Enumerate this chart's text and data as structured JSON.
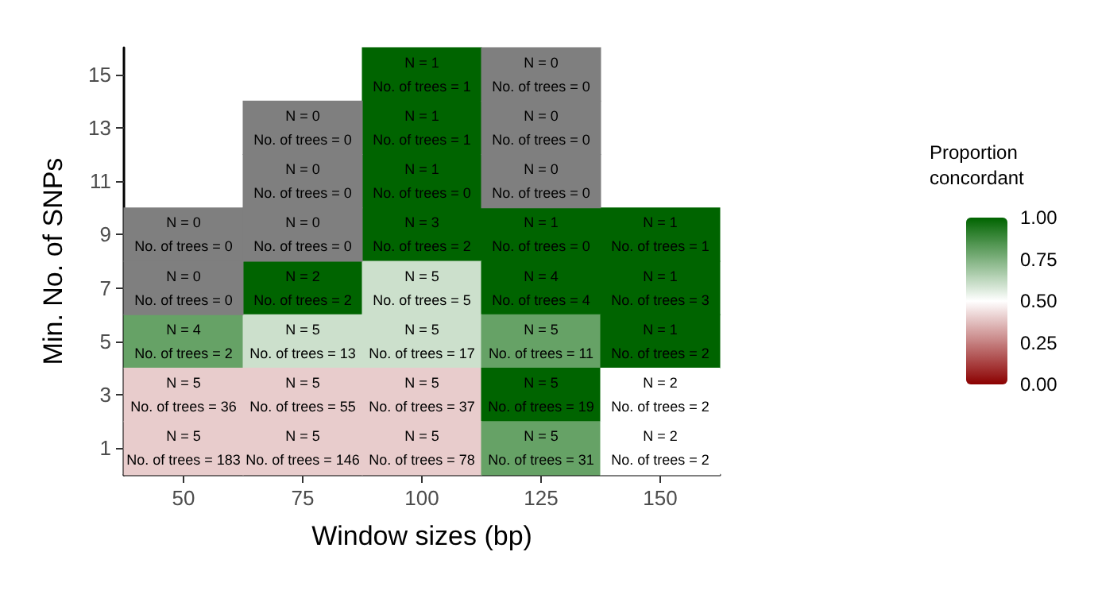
{
  "chart_data": {
    "type": "heatmap",
    "xlabel": "Window sizes (bp)",
    "ylabel": "Min. No. of SNPs",
    "clabel": "Proportion concordant",
    "categories": [
      "50",
      "75",
      "100",
      "125",
      "150"
    ],
    "y_categories": [
      "15",
      "13",
      "11",
      "9",
      "7",
      "5",
      "3",
      "1"
    ],
    "cells": [
      [
        null,
        null,
        1,
        null,
        null
      ],
      [
        null,
        null,
        1,
        null,
        null
      ],
      [
        null,
        null,
        1,
        null,
        null
      ],
      [
        null,
        null,
        1,
        1,
        1
      ],
      [
        null,
        1,
        0.6,
        1,
        1
      ],
      [
        0.8,
        0.6,
        0.6,
        0.8,
        1
      ],
      [
        0.4,
        0.4,
        0.4,
        1,
        0.5
      ],
      [
        0.4,
        0.4,
        0.4,
        0.8,
        0.5
      ]
    ],
    "cell_labels": [
      [
        null,
        null,
        "N = 1\nNo. of trees = 1",
        "N = 0\nNo. of trees = 0",
        null
      ],
      [
        null,
        "N = 0\nNo. of trees = 0",
        "N = 1\nNo. of trees = 1",
        "N = 0\nNo. of trees = 0",
        null
      ],
      [
        null,
        "N = 0\nNo. of trees = 0",
        "N = 1\nNo. of trees = 0",
        "N = 0\nNo. of trees = 0",
        null
      ],
      [
        "N = 0\nNo. of trees = 0",
        "N = 0\nNo. of trees = 0",
        "N = 3\nNo. of trees = 2",
        "N = 1\nNo. of trees = 0",
        "N = 1\nNo. of trees = 1"
      ],
      [
        "N = 0\nNo. of trees = 0",
        "N = 2\nNo. of trees = 2",
        "N = 5\nNo. of trees = 5",
        "N = 4\nNo. of trees = 4",
        "N = 1\nNo. of trees = 3"
      ],
      [
        "N = 4\nNo. of trees = 2",
        "N = 5\nNo. of trees = 13",
        "N = 5\nNo. of trees = 17",
        "N = 5\nNo. of trees = 11",
        "N = 1\nNo. of trees = 2"
      ],
      [
        "N = 5\nNo. of trees = 36",
        "N = 5\nNo. of trees = 55",
        "N = 5\nNo. of trees = 37",
        "N = 5\nNo. of trees = 19",
        "N = 2\nNo. of trees = 2"
      ],
      [
        "N = 5\nNo. of trees = 183",
        "N = 5\nNo. of trees = 146",
        "N = 5\nNo. of trees = 78",
        "N = 5\nNo. of trees = 31",
        "N = 2\nNo. of trees = 2"
      ]
    ],
    "clim": [
      0,
      1
    ],
    "cticks": [
      {
        "value": 0,
        "label": "0.00"
      },
      {
        "value": 0.25,
        "label": "0.25"
      },
      {
        "value": 0.5,
        "label": "0.50"
      },
      {
        "value": 0.75,
        "label": "0.75"
      },
      {
        "value": 1,
        "label": "1.00"
      }
    ]
  }
}
